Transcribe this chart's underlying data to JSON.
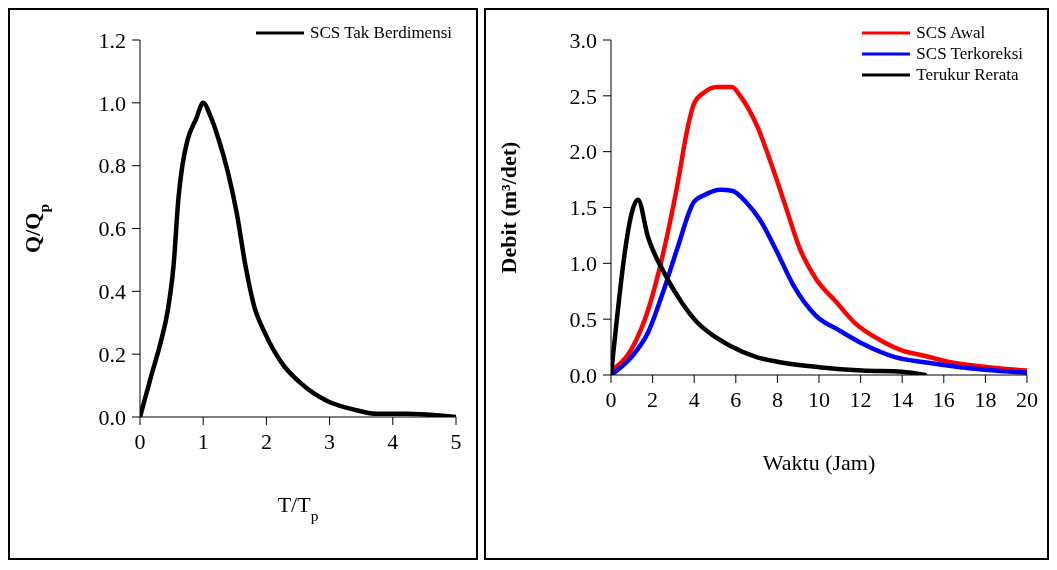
{
  "chart_data": [
    {
      "type": "line",
      "xlabel": "T/T$_{p}$",
      "ylabel": "Q/Q$_{p}$",
      "xlim": [
        0,
        5
      ],
      "xticks": [
        0,
        1,
        2,
        3,
        4,
        5
      ],
      "ylim": [
        0,
        1.2
      ],
      "yticks": [
        {
          "value": 0,
          "label": "0.0"
        },
        {
          "value": 0.2,
          "label": "0.2"
        },
        {
          "value": 0.4,
          "label": "0.4"
        },
        {
          "value": 0.6,
          "label": "0.6"
        },
        {
          "value": 0.8,
          "label": "0.8"
        },
        {
          "value": 1,
          "label": "1.0"
        },
        {
          "value": 1.2,
          "label": "1.2"
        }
      ],
      "legend": "top right",
      "grid": false,
      "marker": "none",
      "line_style": "solid",
      "series": [
        {
          "name": "SCS Tak Berdimensi",
          "color": "#000000",
          "x": [
            0,
            0.19,
            0.33,
            0.44,
            0.53,
            0.61,
            0.67,
            0.75,
            0.89,
            1.0,
            1.11,
            1.25,
            1.39,
            1.53,
            1.67,
            1.81,
            1.97,
            2.25,
            2.53,
            2.97,
            3.36,
            3.75,
            4.2,
            5
          ],
          "values": [
            0,
            0.14,
            0.24,
            0.34,
            0.48,
            0.7,
            0.8,
            0.88,
            0.95,
            1.0,
            0.96,
            0.88,
            0.78,
            0.65,
            0.48,
            0.35,
            0.27,
            0.17,
            0.11,
            0.05,
            0.025,
            0.01,
            0.01,
            0
          ]
        }
      ]
    },
    {
      "type": "line",
      "xlabel": "Waktu (Jam)",
      "ylabel": "Debit (m³/det)",
      "xlim": [
        0,
        20
      ],
      "xticks": [
        0,
        2,
        4,
        6,
        8,
        10,
        12,
        14,
        16,
        18,
        20
      ],
      "ylim": [
        0,
        3
      ],
      "yticks": [
        {
          "value": 0,
          "label": "0.0"
        },
        {
          "value": 0.5,
          "label": "0.5"
        },
        {
          "value": 1,
          "label": "1.0"
        },
        {
          "value": 1.5,
          "label": "1.5"
        },
        {
          "value": 2,
          "label": "2.0"
        },
        {
          "value": 2.5,
          "label": "2.5"
        },
        {
          "value": 3,
          "label": "3.0"
        }
      ],
      "legend": "top right",
      "grid": false,
      "marker": "none",
      "line_style": "solid",
      "series": [
        {
          "name": "SCS Awal",
          "color": "#ff0000",
          "x": [
            0,
            0.98,
            1.78,
            2.57,
            3.2,
            3.68,
            3.99,
            4.47,
            5.1,
            5.82,
            6.21,
            7.0,
            7.8,
            8.43,
            9.06,
            9.86,
            10.8,
            11.76,
            12.87,
            13.98,
            15.1,
            16.2,
            18.1,
            20
          ],
          "values": [
            0.04,
            0.23,
            0.58,
            1.14,
            1.71,
            2.21,
            2.43,
            2.53,
            2.58,
            2.58,
            2.5,
            2.24,
            1.84,
            1.49,
            1.14,
            0.86,
            0.66,
            0.46,
            0.32,
            0.22,
            0.17,
            0.12,
            0.07,
            0.04
          ]
        },
        {
          "name": "SCS Terkoreksi",
          "color": "#0000ff",
          "x": [
            0,
            0.98,
            1.78,
            2.57,
            3.2,
            3.99,
            4.47,
            5.26,
            5.82,
            6.53,
            7.16,
            7.96,
            8.75,
            9.86,
            10.97,
            12.1,
            13.66,
            15.25,
            16.8,
            20
          ],
          "values": [
            0,
            0.16,
            0.38,
            0.78,
            1.14,
            1.55,
            1.61,
            1.66,
            1.65,
            1.54,
            1.39,
            1.11,
            0.81,
            0.53,
            0.4,
            0.28,
            0.16,
            0.11,
            0.07,
            0.02
          ]
        },
        {
          "name": "Terukur Rerata",
          "color": "#000000",
          "x": [
            0,
            1.3,
            1.77,
            2.57,
            3.36,
            4.15,
            4.94,
            5.74,
            7.0,
            8.27,
            10.0,
            12.08,
            13.98,
            15.1
          ],
          "values": [
            0,
            1.57,
            1.24,
            0.91,
            0.66,
            0.47,
            0.35,
            0.26,
            0.16,
            0.11,
            0.07,
            0.04,
            0.03,
            0
          ]
        }
      ]
    }
  ]
}
